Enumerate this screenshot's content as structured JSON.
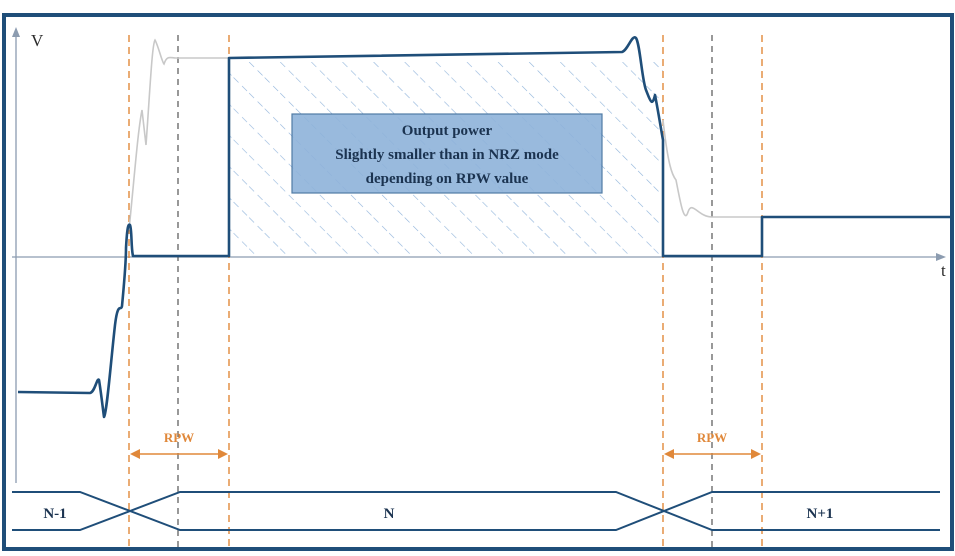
{
  "axes": {
    "y_label": "V",
    "x_label": "t"
  },
  "annotation_box": {
    "lines": [
      "Output power",
      "Slightly smaller than in NRZ mode",
      "depending on RPW value"
    ]
  },
  "rpw_markers": [
    {
      "label": "RPW"
    },
    {
      "label": "RPW"
    }
  ],
  "symbol_bus": {
    "symbols": [
      "N-1",
      "N",
      "N+1"
    ]
  },
  "colors": {
    "frame": "#1f4e79",
    "signal": "#1f4e79",
    "nrz_reference": "#c8c8c8",
    "axis": "#8c9cb0",
    "rpw_boundary": "#e0883a",
    "mid_boundary": "#555555",
    "box_fill": "#8fb3da",
    "hatch": "#8fb3da"
  }
}
